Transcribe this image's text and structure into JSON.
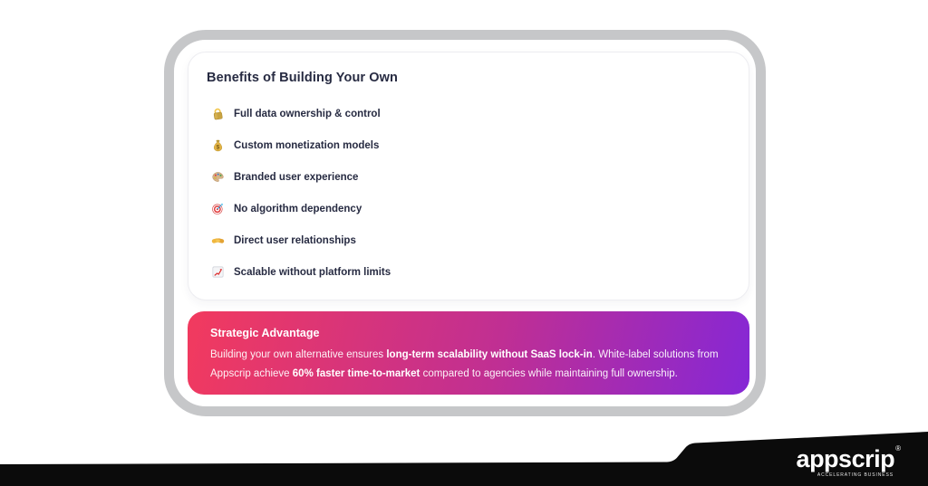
{
  "card": {
    "title": "Benefits of Building Your Own",
    "items": [
      {
        "icon": "lock",
        "label": "Full data ownership & control"
      },
      {
        "icon": "money-bag",
        "label": "Custom monetization models"
      },
      {
        "icon": "palette",
        "label": "Branded user experience"
      },
      {
        "icon": "target",
        "label": "No algorithm dependency"
      },
      {
        "icon": "handshake",
        "label": "Direct user relationships"
      },
      {
        "icon": "chart-up",
        "label": "Scalable without platform limits"
      }
    ]
  },
  "banner": {
    "title": "Strategic Advantage",
    "segments": [
      {
        "text": "Building your own alternative ensures ",
        "bold": false
      },
      {
        "text": "long-term scalability without SaaS lock-in",
        "bold": true
      },
      {
        "text": ". White-label solutions from Appscrip achieve ",
        "bold": false
      },
      {
        "text": "60% faster time-to-market",
        "bold": true
      },
      {
        "text": " compared to agencies while maintaining full ownership.",
        "bold": false
      }
    ],
    "gradient_from": "#f23a5e",
    "gradient_mid": "#c02f93",
    "gradient_to": "#8527d6"
  },
  "logo": {
    "brand": "appscrip",
    "registered_mark": "®",
    "tagline": "ACCELERATING BUSINESS"
  },
  "colors": {
    "frame_border": "#c6c7c9",
    "heading_text": "#272b42",
    "footer_black": "#0b0b0b",
    "card_border": "#ededf1"
  }
}
